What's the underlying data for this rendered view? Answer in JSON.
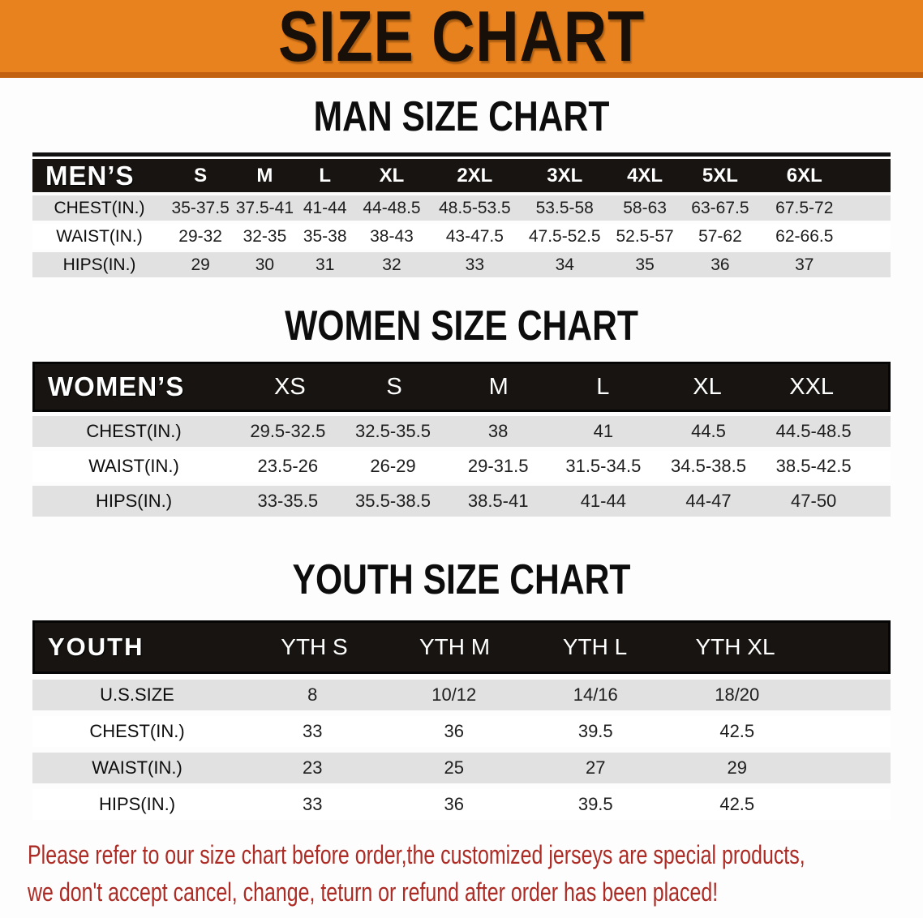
{
  "banner": {
    "title": "SIZE CHART"
  },
  "theme": {
    "orange": "#E8821E",
    "orange_dark": "#C2610F",
    "band": "#171411",
    "row_gray": "#E2E1E1",
    "note_red": "#AC2B24"
  },
  "sections": [
    {
      "title": "MAN SIZE CHART",
      "header_label": "MEN’S",
      "columns": [
        "S",
        "M",
        "L",
        "XL",
        "2XL",
        "3XL",
        "4XL",
        "5XL",
        "6XL"
      ],
      "rows": [
        {
          "label": "CHEST(IN.)",
          "values": [
            "35-37.5",
            "37.5-41",
            "41-44",
            "44-48.5",
            "48.5-53.5",
            "53.5-58",
            "58-63",
            "63-67.5",
            "67.5-72"
          ]
        },
        {
          "label": "WAIST(IN.)",
          "values": [
            "29-32",
            "32-35",
            "35-38",
            "38-43",
            "43-47.5",
            "47.5-52.5",
            "52.5-57",
            "57-62",
            "62-66.5"
          ]
        },
        {
          "label": "HIPS(IN.)",
          "values": [
            "29",
            "30",
            "31",
            "32",
            "33",
            "34",
            "35",
            "36",
            "37"
          ]
        }
      ]
    },
    {
      "title": "WOMEN SIZE CHART",
      "header_label": "WOMEN’S",
      "columns": [
        "XS",
        "S",
        "M",
        "L",
        "XL",
        "XXL"
      ],
      "rows": [
        {
          "label": "CHEST(IN.)",
          "values": [
            "29.5-32.5",
            "32.5-35.5",
            "38",
            "41",
            "44.5",
            "44.5-48.5"
          ]
        },
        {
          "label": "WAIST(IN.)",
          "values": [
            "23.5-26",
            "26-29",
            "29-31.5",
            "31.5-34.5",
            "34.5-38.5",
            "38.5-42.5"
          ]
        },
        {
          "label": "HIPS(IN.)",
          "values": [
            "33-35.5",
            "35.5-38.5",
            "38.5-41",
            "41-44",
            "44-47",
            "47-50"
          ]
        }
      ]
    },
    {
      "title": "YOUTH SIZE CHART",
      "header_label": "YOUTH",
      "columns": [
        "YTH S",
        "YTH M",
        "YTH L",
        "YTH XL"
      ],
      "rows": [
        {
          "label": "U.S.SIZE",
          "values": [
            "8",
            "10/12",
            "14/16",
            "18/20"
          ]
        },
        {
          "label": "CHEST(IN.)",
          "values": [
            "33",
            "36",
            "39.5",
            "42.5"
          ]
        },
        {
          "label": "WAIST(IN.)",
          "values": [
            "23",
            "25",
            "27",
            "29"
          ]
        },
        {
          "label": "HIPS(IN.)",
          "values": [
            "33",
            "36",
            "39.5",
            "42.5"
          ]
        }
      ]
    }
  ],
  "footer": {
    "line1": "Please refer to our size chart before order,the customized jerseys are special products,",
    "line2": "we don't accept cancel, change, teturn or refund after order has been placed!"
  }
}
